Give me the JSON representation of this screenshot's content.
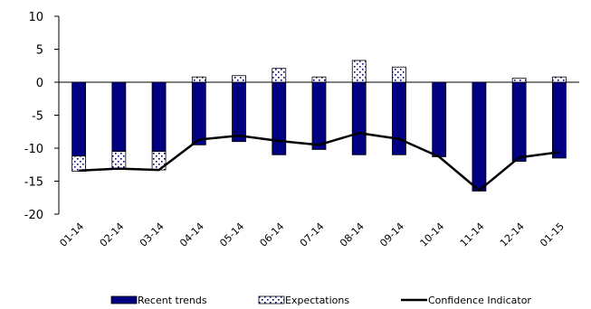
{
  "chart_data": {
    "type": "bar",
    "categories": [
      "01-14",
      "02-14",
      "03-14",
      "04-14",
      "05-14",
      "06-14",
      "07-14",
      "08-14",
      "09-14",
      "10-14",
      "11-14",
      "12-14",
      "01-15"
    ],
    "series": [
      {
        "name": "Recent trends",
        "kind": "bar",
        "color": "#000080",
        "values": [
          -11.2,
          -10.5,
          -10.5,
          -9.5,
          -9.0,
          -11.0,
          -10.2,
          -11.0,
          -11.0,
          -11.3,
          -16.5,
          -12.0,
          -11.5
        ]
      },
      {
        "name": "Expectations",
        "kind": "stacked-bar",
        "pattern": "white-dotted",
        "values": [
          -2.3,
          -2.6,
          -2.8,
          0.8,
          1.0,
          2.1,
          0.8,
          3.3,
          2.3,
          0.0,
          0.0,
          0.6,
          0.8
        ]
      },
      {
        "name": "Confidence Indicator",
        "kind": "line",
        "color": "#000000",
        "values": [
          -13.4,
          -13.1,
          -13.3,
          -8.7,
          -8.1,
          -8.9,
          -9.5,
          -7.7,
          -8.6,
          -11.3,
          -16.4,
          -11.4,
          -10.6
        ]
      }
    ],
    "y_ticks": [
      10,
      5,
      0,
      -5,
      -10,
      -15,
      -20
    ],
    "ylim": [
      -20,
      10
    ],
    "legend_position": "bottom"
  }
}
